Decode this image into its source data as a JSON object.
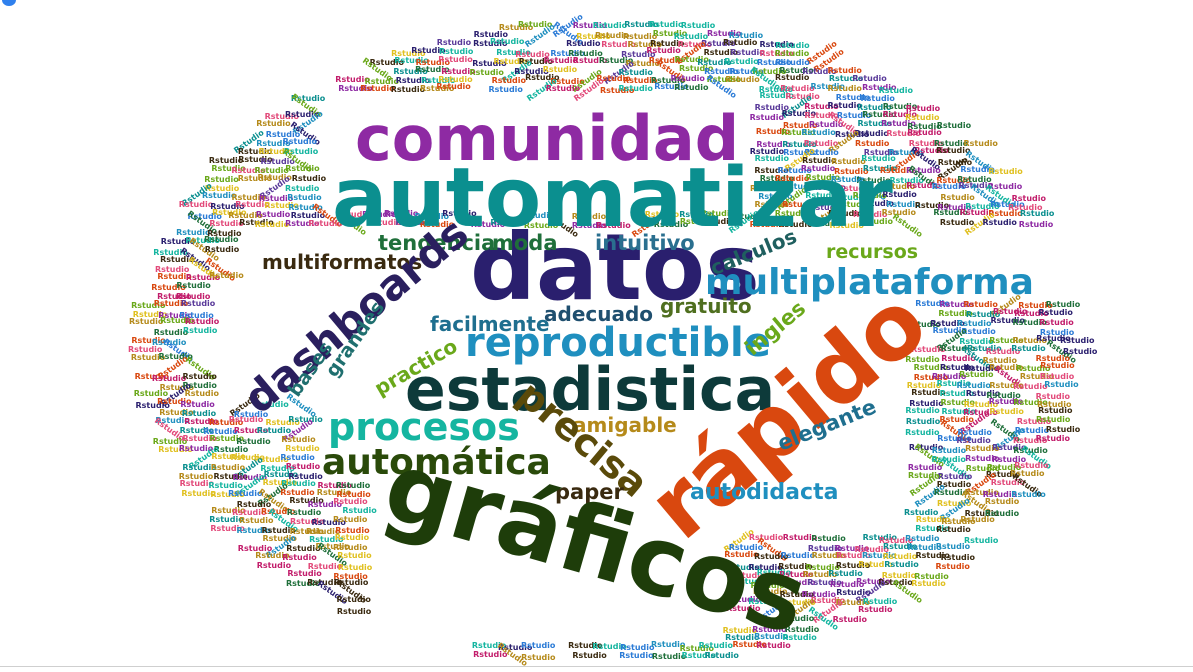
{
  "filler_word": "Rstudio",
  "words": [
    {
      "id": "comunidad",
      "text": "comunidad",
      "color": "#8e2aa3"
    },
    {
      "id": "automatizar",
      "text": "automatizar",
      "color": "#0b8f8f"
    },
    {
      "id": "datos",
      "text": "datos",
      "color": "#2a1f6e"
    },
    {
      "id": "tendencia",
      "text": "tendencia",
      "color": "#1f6f3a"
    },
    {
      "id": "moda",
      "text": "moda",
      "color": "#1f6f3a"
    },
    {
      "id": "intuitivo",
      "text": "intuitivo",
      "color": "#2a6f8f"
    },
    {
      "id": "multiformatos",
      "text": "multiformatos",
      "color": "#3a2a10"
    },
    {
      "id": "calculos",
      "text": "calculos",
      "color": "#1f5f5f"
    },
    {
      "id": "recursos",
      "text": "recursos",
      "color": "#6aa81a"
    },
    {
      "id": "multiplataforma",
      "text": "multiplataforma",
      "color": "#1f8fbf"
    },
    {
      "id": "dashboards",
      "text": "dashboards",
      "color": "#2a1f5e"
    },
    {
      "id": "bases",
      "text": "bases",
      "color": "#1f6f6f"
    },
    {
      "id": "grandes",
      "text": "grandes",
      "color": "#1f6f6f"
    },
    {
      "id": "facilmente",
      "text": "facilmente",
      "color": "#1f6f8f"
    },
    {
      "id": "adecuado",
      "text": "adecuado",
      "color": "#1f4f6f"
    },
    {
      "id": "gratuito",
      "text": "gratuito",
      "color": "#4f6f1f"
    },
    {
      "id": "reproductible",
      "text": "reproductible",
      "color": "#1f8fbf"
    },
    {
      "id": "ingles",
      "text": "ingles",
      "color": "#6aa81a"
    },
    {
      "id": "practico",
      "text": "practico",
      "color": "#6aa81a"
    },
    {
      "id": "estadistica",
      "text": "estadistica",
      "color": "#0d3a3a"
    },
    {
      "id": "rapido",
      "text": "rápido",
      "color": "#d9480f"
    },
    {
      "id": "procesos",
      "text": "procesos",
      "color": "#15b5a0"
    },
    {
      "id": "amigable",
      "text": "amigable",
      "color": "#b58a1a"
    },
    {
      "id": "precisa",
      "text": "precisa",
      "color": "#5a4a0a"
    },
    {
      "id": "elegante",
      "text": "elegante",
      "color": "#1f6f8f"
    },
    {
      "id": "automatica",
      "text": "automática",
      "color": "#2a4a0a"
    },
    {
      "id": "paper",
      "text": "paper",
      "color": "#3a2a10"
    },
    {
      "id": "autodidacta",
      "text": "autodidacta",
      "color": "#1f8fbf"
    },
    {
      "id": "graficos",
      "text": "gráficos",
      "color": "#1e3d0a"
    }
  ],
  "filler_colors": [
    "#d9480f",
    "#1f6f3a",
    "#8e2aa3",
    "#2a1f6e",
    "#0b8f8f",
    "#b58a1a",
    "#6aa81a",
    "#1f8fbf",
    "#c21d6b",
    "#15b5a0",
    "#3a2a10",
    "#e0c020",
    "#e24a7a",
    "#2b7bd6",
    "#5a3a9a"
  ]
}
